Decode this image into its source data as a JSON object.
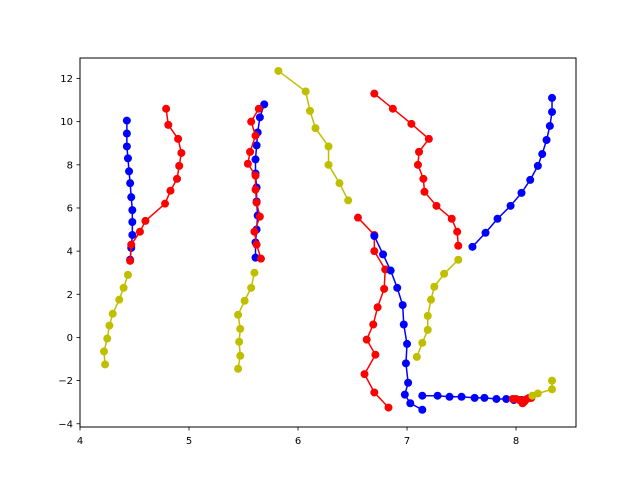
{
  "chart_data": {
    "type": "line",
    "title": "",
    "xlabel": "",
    "ylabel": "",
    "xlim": [
      4.0,
      8.55
    ],
    "ylim": [
      -4.15,
      12.95
    ],
    "xticks": [
      4,
      5,
      6,
      7,
      8
    ],
    "yticks": [
      -4,
      -2,
      0,
      2,
      4,
      6,
      8,
      10,
      12
    ],
    "grid": false,
    "legend": "none",
    "colors": {
      "blue": "#0000ff",
      "red": "#ff0000",
      "yellow": "#bfbf00"
    },
    "series": [
      {
        "color": "blue",
        "points": [
          [
            4.43,
            10.05
          ],
          [
            4.43,
            9.45
          ],
          [
            4.43,
            8.85
          ],
          [
            4.44,
            8.3
          ],
          [
            4.45,
            7.7
          ],
          [
            4.46,
            7.15
          ],
          [
            4.47,
            6.5
          ],
          [
            4.48,
            5.9
          ],
          [
            4.48,
            5.35
          ],
          [
            4.48,
            4.75
          ],
          [
            4.47,
            4.15
          ],
          [
            4.46,
            3.6
          ]
        ]
      },
      {
        "color": "red",
        "points": [
          [
            4.79,
            10.6
          ],
          [
            4.81,
            9.85
          ],
          [
            4.9,
            9.2
          ],
          [
            4.93,
            8.55
          ],
          [
            4.91,
            7.95
          ],
          [
            4.89,
            7.35
          ],
          [
            4.83,
            6.8
          ],
          [
            4.78,
            6.2
          ],
          [
            4.6,
            5.4
          ],
          [
            4.55,
            4.9
          ],
          [
            4.47,
            4.3
          ],
          [
            4.46,
            3.55
          ]
        ]
      },
      {
        "color": "yellow",
        "points": [
          [
            4.44,
            2.9
          ],
          [
            4.4,
            2.3
          ],
          [
            4.36,
            1.75
          ],
          [
            4.3,
            1.1
          ],
          [
            4.27,
            0.55
          ],
          [
            4.25,
            -0.05
          ],
          [
            4.22,
            -0.65
          ],
          [
            4.23,
            -1.25
          ]
        ]
      },
      {
        "color": "blue",
        "points": [
          [
            5.69,
            10.8
          ],
          [
            5.65,
            10.2
          ],
          [
            5.63,
            9.5
          ],
          [
            5.62,
            8.9
          ],
          [
            5.61,
            8.25
          ],
          [
            5.61,
            7.6
          ],
          [
            5.62,
            6.95
          ],
          [
            5.62,
            6.3
          ],
          [
            5.63,
            5.65
          ],
          [
            5.62,
            5.0
          ],
          [
            5.61,
            4.4
          ],
          [
            5.61,
            3.7
          ]
        ]
      },
      {
        "color": "red",
        "points": [
          [
            5.64,
            10.6
          ],
          [
            5.57,
            10.0
          ],
          [
            5.61,
            9.35
          ],
          [
            5.56,
            8.6
          ],
          [
            5.54,
            8.05
          ],
          [
            5.61,
            7.5
          ],
          [
            5.61,
            6.85
          ],
          [
            5.62,
            6.25
          ],
          [
            5.65,
            5.6
          ],
          [
            5.6,
            4.9
          ],
          [
            5.62,
            4.3
          ],
          [
            5.66,
            3.65
          ]
        ]
      },
      {
        "color": "yellow",
        "points": [
          [
            5.6,
            3.0
          ],
          [
            5.57,
            2.3
          ],
          [
            5.51,
            1.7
          ],
          [
            5.45,
            1.05
          ],
          [
            5.47,
            0.4
          ],
          [
            5.46,
            -0.2
          ],
          [
            5.47,
            -0.85
          ],
          [
            5.45,
            -1.45
          ]
        ]
      },
      {
        "color": "yellow",
        "points": [
          [
            5.82,
            12.35
          ],
          [
            6.07,
            11.4
          ],
          [
            6.11,
            10.5
          ],
          [
            6.16,
            9.7
          ],
          [
            6.28,
            8.85
          ],
          [
            6.28,
            8.0
          ],
          [
            6.38,
            7.15
          ],
          [
            6.46,
            6.35
          ]
        ]
      },
      {
        "color": "red",
        "points": [
          [
            6.55,
            5.55
          ],
          [
            6.7,
            4.75
          ],
          [
            6.7,
            4.0
          ],
          [
            6.8,
            3.15
          ],
          [
            6.79,
            2.25
          ],
          [
            6.73,
            1.4
          ],
          [
            6.69,
            0.6
          ],
          [
            6.63,
            -0.1
          ],
          [
            6.71,
            -0.8
          ],
          [
            6.61,
            -1.7
          ],
          [
            6.7,
            -2.55
          ],
          [
            6.83,
            -3.25
          ]
        ]
      },
      {
        "color": "blue",
        "points": [
          [
            6.7,
            4.7
          ],
          [
            6.78,
            3.85
          ],
          [
            6.85,
            3.1
          ],
          [
            6.91,
            2.3
          ],
          [
            6.96,
            1.5
          ],
          [
            6.97,
            0.6
          ],
          [
            7.0,
            -0.3
          ],
          [
            6.99,
            -1.2
          ],
          [
            7.01,
            -2.1
          ],
          [
            6.98,
            -2.65
          ],
          [
            7.03,
            -3.05
          ],
          [
            7.14,
            -3.35
          ]
        ]
      },
      {
        "color": "red",
        "points": [
          [
            6.7,
            11.3
          ],
          [
            6.87,
            10.6
          ],
          [
            7.04,
            9.9
          ],
          [
            7.2,
            9.2
          ],
          [
            7.11,
            8.6
          ],
          [
            7.1,
            8.0
          ],
          [
            7.15,
            7.35
          ],
          [
            7.16,
            6.75
          ],
          [
            7.27,
            6.1
          ],
          [
            7.41,
            5.5
          ],
          [
            7.46,
            4.9
          ],
          [
            7.47,
            4.25
          ]
        ]
      },
      {
        "color": "blue",
        "points": [
          [
            8.33,
            11.1
          ],
          [
            8.33,
            10.45
          ],
          [
            8.31,
            9.8
          ],
          [
            8.28,
            9.15
          ],
          [
            8.24,
            8.5
          ],
          [
            8.2,
            7.95
          ],
          [
            8.13,
            7.3
          ],
          [
            8.05,
            6.7
          ],
          [
            7.95,
            6.1
          ],
          [
            7.83,
            5.5
          ],
          [
            7.72,
            4.85
          ],
          [
            7.6,
            4.2
          ]
        ]
      },
      {
        "color": "yellow",
        "points": [
          [
            7.47,
            3.6
          ],
          [
            7.34,
            2.95
          ],
          [
            7.25,
            2.35
          ],
          [
            7.22,
            1.75
          ],
          [
            7.19,
            1.0
          ],
          [
            7.19,
            0.35
          ],
          [
            7.14,
            -0.25
          ],
          [
            7.09,
            -0.9
          ]
        ]
      },
      {
        "color": "blue",
        "points": [
          [
            7.14,
            -2.7
          ],
          [
            7.28,
            -2.7
          ],
          [
            7.39,
            -2.75
          ],
          [
            7.5,
            -2.75
          ],
          [
            7.62,
            -2.8
          ],
          [
            7.71,
            -2.8
          ],
          [
            7.82,
            -2.85
          ],
          [
            7.91,
            -2.85
          ],
          [
            7.98,
            -2.9
          ],
          [
            8.05,
            -2.9
          ],
          [
            8.06,
            -2.95
          ],
          [
            8.07,
            -3.0
          ]
        ]
      },
      {
        "color": "red",
        "points": [
          [
            7.97,
            -2.85
          ],
          [
            8.0,
            -2.85
          ],
          [
            8.03,
            -2.9
          ],
          [
            8.05,
            -2.95
          ],
          [
            8.06,
            -3.05
          ],
          [
            8.07,
            -3.0
          ],
          [
            8.08,
            -2.95
          ],
          [
            8.08,
            -2.9
          ],
          [
            8.1,
            -2.85
          ],
          [
            8.12,
            -2.8
          ],
          [
            8.13,
            -2.8
          ],
          [
            8.14,
            -2.8
          ]
        ]
      },
      {
        "color": "yellow",
        "points": [
          [
            8.33,
            -2.0
          ],
          [
            8.33,
            -2.4
          ],
          [
            8.2,
            -2.6
          ],
          [
            8.15,
            -2.7
          ]
        ]
      }
    ]
  }
}
